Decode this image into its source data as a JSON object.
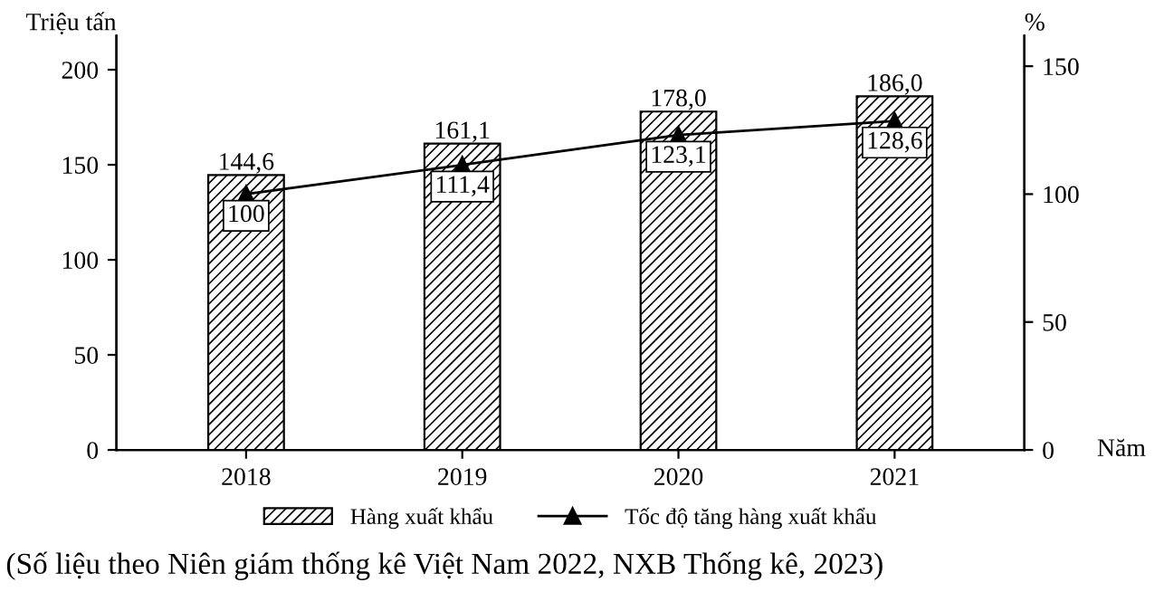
{
  "chart_data": {
    "type": "bar",
    "ylabel": "Triệu tấn",
    "y2label": "%",
    "xlabel": "Năm",
    "categories": [
      "2018",
      "2019",
      "2020",
      "2021"
    ],
    "series": [
      {
        "name": "Hàng xuất khẩu",
        "color": "#000000",
        "values": [
          144.6,
          161.1,
          178.0,
          186.0
        ],
        "value_labels": [
          "144,6",
          "161,1",
          "178,0",
          "186,0"
        ]
      },
      {
        "name": "Tốc độ tăng hàng xuất khẩu",
        "type": "line",
        "axis": "y2",
        "color": "#000000",
        "marker": "triangle",
        "values": [
          100,
          111.4,
          123.1,
          128.6
        ],
        "value_labels": [
          "100",
          "111,4",
          "123,1",
          "128,6"
        ]
      }
    ],
    "ylim": [
      0,
      218
    ],
    "yticks": [
      0,
      50,
      100,
      150,
      200
    ],
    "y2lim": [
      0,
      162
    ],
    "y2ticks": [
      0,
      50,
      100,
      150
    ],
    "grid": false,
    "legend": "bottom",
    "annotations": [
      "(Số liệu theo Niên giám thống kê Việt Nam 2022, NXB Thống kê, 2023)"
    ]
  }
}
